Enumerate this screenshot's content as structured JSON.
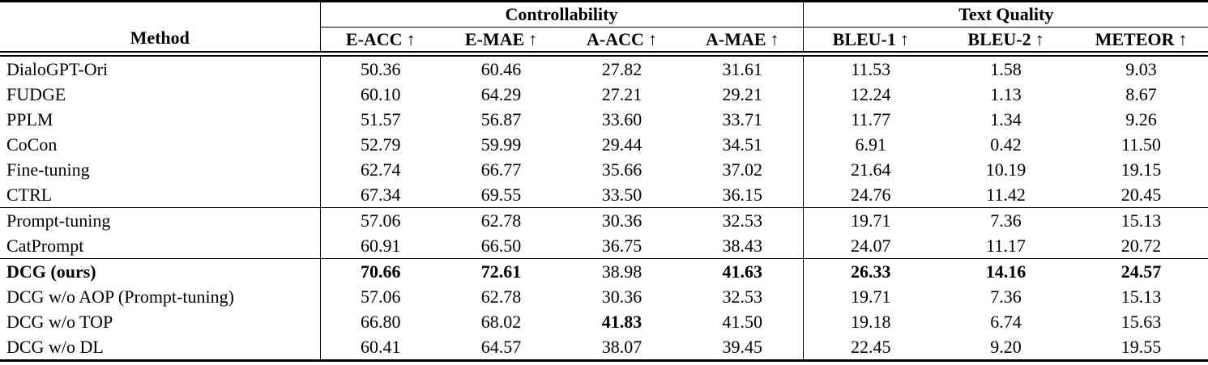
{
  "table": {
    "method_header": "Method",
    "groups": [
      {
        "label": "Controllability"
      },
      {
        "label": "Text Quality"
      }
    ],
    "columns": [
      {
        "label": "E-ACC",
        "arrow": "↑"
      },
      {
        "label": "E-MAE",
        "arrow": "↑"
      },
      {
        "label": "A-ACC",
        "arrow": "↑"
      },
      {
        "label": "A-MAE",
        "arrow": "↑"
      },
      {
        "label": "BLEU-1",
        "arrow": "↑"
      },
      {
        "label": "BLEU-2",
        "arrow": "↑"
      },
      {
        "label": "METEOR",
        "arrow": "↑"
      }
    ],
    "rows": [
      {
        "method": "DialoGPT-Ori",
        "bold_method": false,
        "section_start": false,
        "values": [
          "50.36",
          "60.46",
          "27.82",
          "31.61",
          "11.53",
          "1.58",
          "9.03"
        ],
        "bold": [
          false,
          false,
          false,
          false,
          false,
          false,
          false
        ]
      },
      {
        "method": "FUDGE",
        "bold_method": false,
        "section_start": false,
        "values": [
          "60.10",
          "64.29",
          "27.21",
          "29.21",
          "12.24",
          "1.13",
          "8.67"
        ],
        "bold": [
          false,
          false,
          false,
          false,
          false,
          false,
          false
        ]
      },
      {
        "method": "PPLM",
        "bold_method": false,
        "section_start": false,
        "values": [
          "51.57",
          "56.87",
          "33.60",
          "33.71",
          "11.77",
          "1.34",
          "9.26"
        ],
        "bold": [
          false,
          false,
          false,
          false,
          false,
          false,
          false
        ]
      },
      {
        "method": "CoCon",
        "bold_method": false,
        "section_start": false,
        "values": [
          "52.79",
          "59.99",
          "29.44",
          "34.51",
          "6.91",
          "0.42",
          "11.50"
        ],
        "bold": [
          false,
          false,
          false,
          false,
          false,
          false,
          false
        ]
      },
      {
        "method": "Fine-tuning",
        "bold_method": false,
        "section_start": false,
        "values": [
          "62.74",
          "66.77",
          "35.66",
          "37.02",
          "21.64",
          "10.19",
          "19.15"
        ],
        "bold": [
          false,
          false,
          false,
          false,
          false,
          false,
          false
        ]
      },
      {
        "method": "CTRL",
        "bold_method": false,
        "section_start": false,
        "values": [
          "67.34",
          "69.55",
          "33.50",
          "36.15",
          "24.76",
          "11.42",
          "20.45"
        ],
        "bold": [
          false,
          false,
          false,
          false,
          false,
          false,
          false
        ]
      },
      {
        "method": "Prompt-tuning",
        "bold_method": false,
        "section_start": true,
        "values": [
          "57.06",
          "62.78",
          "30.36",
          "32.53",
          "19.71",
          "7.36",
          "15.13"
        ],
        "bold": [
          false,
          false,
          false,
          false,
          false,
          false,
          false
        ]
      },
      {
        "method": "CatPrompt",
        "bold_method": false,
        "section_start": false,
        "values": [
          "60.91",
          "66.50",
          "36.75",
          "38.43",
          "24.07",
          "11.17",
          "20.72"
        ],
        "bold": [
          false,
          false,
          false,
          false,
          false,
          false,
          false
        ]
      },
      {
        "method": "DCG (ours)",
        "bold_method": true,
        "section_start": true,
        "values": [
          "70.66",
          "72.61",
          "38.98",
          "41.63",
          "26.33",
          "14.16",
          "24.57"
        ],
        "bold": [
          true,
          true,
          false,
          true,
          true,
          true,
          true
        ]
      },
      {
        "method": "DCG w/o AOP (Prompt-tuning)",
        "bold_method": false,
        "section_start": false,
        "values": [
          "57.06",
          "62.78",
          "30.36",
          "32.53",
          "19.71",
          "7.36",
          "15.13"
        ],
        "bold": [
          false,
          false,
          false,
          false,
          false,
          false,
          false
        ]
      },
      {
        "method": "DCG w/o TOP",
        "bold_method": false,
        "section_start": false,
        "values": [
          "66.80",
          "68.02",
          "41.83",
          "41.50",
          "19.18",
          "6.74",
          "15.63"
        ],
        "bold": [
          false,
          false,
          true,
          false,
          false,
          false,
          false
        ]
      },
      {
        "method": "DCG w/o DL",
        "bold_method": false,
        "section_start": false,
        "values": [
          "60.41",
          "64.57",
          "38.07",
          "39.45",
          "22.45",
          "9.20",
          "19.55"
        ],
        "bold": [
          false,
          false,
          false,
          false,
          false,
          false,
          false
        ]
      }
    ]
  }
}
